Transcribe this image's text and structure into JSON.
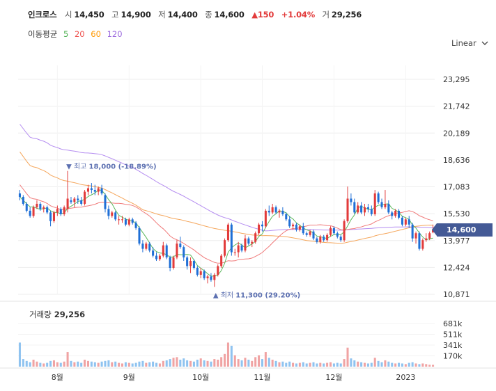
{
  "header": {
    "name": "인크로스",
    "open_label": "시",
    "open": "14,450",
    "high_label": "고",
    "high": "14,900",
    "low_label": "저",
    "low": "14,400",
    "close_label": "종",
    "close": "14,600",
    "change": "▲150",
    "change_pct": "+1.04%",
    "volume_label": "거",
    "volume": "29,256"
  },
  "ma_legend": {
    "label": "이동평균",
    "items": [
      {
        "period": "5",
        "color": "#4caf50"
      },
      {
        "period": "20",
        "color": "#ef5350"
      },
      {
        "period": "60",
        "color": "#ff9800"
      },
      {
        "period": "120",
        "color": "#9c6ade"
      }
    ]
  },
  "scale_button": "Linear",
  "volume_panel": {
    "label": "거래량",
    "value": "29,256"
  },
  "last_price_tag": "14,600",
  "colors": {
    "up": "#e23b3b",
    "down": "#1f6fd6",
    "vol_up": "#f0a3a3",
    "vol_down": "#8fc3f0",
    "accent": "#445a96"
  },
  "chart_data": {
    "type": "candlestick",
    "price_axis": {
      "ticks": [
        "23,295",
        "21,742",
        "20,189",
        "18,636",
        "17,083",
        "15,530",
        "13,977",
        "12,424",
        "10,871"
      ],
      "ylim": [
        10871,
        23295
      ]
    },
    "volume_axis": {
      "ticks": [
        "681k",
        "511k",
        "341k",
        "170k"
      ]
    },
    "x_ticks": [
      {
        "label": "8월",
        "index": 11
      },
      {
        "label": "9월",
        "index": 32
      },
      {
        "label": "10월",
        "index": 53
      },
      {
        "label": "11월",
        "index": 71
      },
      {
        "label": "12월",
        "index": 92
      },
      {
        "label": "2023",
        "index": 113
      }
    ],
    "annotations": [
      {
        "label": "최고",
        "value": "18,000",
        "pct": "(-18.89%)",
        "index": 14,
        "type": "high"
      },
      {
        "label": "최저",
        "value": "11,300",
        "pct": "(29.20%)",
        "index": 57,
        "type": "low"
      }
    ],
    "ohlcv": [
      [
        16700,
        16900,
        16300,
        16500,
        380
      ],
      [
        16500,
        16600,
        16000,
        16100,
        120
      ],
      [
        16100,
        16200,
        15600,
        15700,
        90
      ],
      [
        15700,
        15900,
        15300,
        15400,
        70
      ],
      [
        15400,
        16000,
        15300,
        15900,
        110
      ],
      [
        15900,
        16300,
        15800,
        16100,
        80
      ],
      [
        16100,
        16200,
        15700,
        15800,
        60
      ],
      [
        15800,
        16000,
        15600,
        15900,
        50
      ],
      [
        15900,
        16000,
        15500,
        15600,
        60
      ],
      [
        15600,
        15700,
        14800,
        15100,
        90
      ],
      [
        15100,
        15700,
        15000,
        15600,
        100
      ],
      [
        15600,
        16000,
        15400,
        15800,
        70
      ],
      [
        15800,
        15900,
        15400,
        15500,
        60
      ],
      [
        15500,
        16000,
        15400,
        15900,
        80
      ],
      [
        15800,
        18000,
        15600,
        16400,
        230
      ],
      [
        16300,
        16500,
        16100,
        16200,
        90
      ],
      [
        16200,
        16500,
        15900,
        16400,
        70
      ],
      [
        16400,
        16600,
        16100,
        16300,
        80
      ],
      [
        16300,
        16500,
        16000,
        16100,
        60
      ],
      [
        16100,
        16900,
        16000,
        16800,
        110
      ],
      [
        16800,
        17200,
        16600,
        17000,
        90
      ],
      [
        17000,
        17300,
        16700,
        16900,
        80
      ],
      [
        16900,
        17200,
        16600,
        16800,
        70
      ],
      [
        16800,
        17100,
        16600,
        17000,
        60
      ],
      [
        17000,
        17200,
        16600,
        16700,
        80
      ],
      [
        16600,
        16700,
        15600,
        15800,
        90
      ],
      [
        15800,
        16000,
        15200,
        15400,
        100
      ],
      [
        15400,
        15700,
        15300,
        15600,
        70
      ],
      [
        15600,
        15700,
        15100,
        15200,
        80
      ],
      [
        15200,
        15400,
        14900,
        15200,
        60
      ],
      [
        15200,
        15400,
        15000,
        15200,
        50
      ],
      [
        15200,
        15300,
        14800,
        14900,
        70
      ],
      [
        14900,
        15300,
        14800,
        15200,
        60
      ],
      [
        15200,
        15300,
        14900,
        15000,
        50
      ],
      [
        15000,
        15100,
        14600,
        14700,
        60
      ],
      [
        14700,
        14800,
        13700,
        13800,
        80
      ],
      [
        13800,
        14000,
        13300,
        13500,
        90
      ],
      [
        13500,
        13900,
        13400,
        13800,
        60
      ],
      [
        13800,
        13900,
        13300,
        13400,
        70
      ],
      [
        13400,
        13600,
        13000,
        13100,
        80
      ],
      [
        13100,
        13300,
        12800,
        12900,
        60
      ],
      [
        12900,
        13200,
        12800,
        13100,
        50
      ],
      [
        13100,
        13900,
        13000,
        13700,
        90
      ],
      [
        13700,
        13800,
        12900,
        13000,
        100
      ],
      [
        13000,
        13100,
        12200,
        12400,
        120
      ],
      [
        12400,
        13100,
        12300,
        13000,
        140
      ],
      [
        13000,
        14000,
        12900,
        13800,
        150
      ],
      [
        13800,
        14200,
        13500,
        13600,
        110
      ],
      [
        13600,
        13700,
        12800,
        13000,
        130
      ],
      [
        13000,
        13100,
        12300,
        12500,
        100
      ],
      [
        12500,
        13000,
        12100,
        12800,
        90
      ],
      [
        12800,
        12900,
        12300,
        12400,
        80
      ],
      [
        12400,
        12500,
        11900,
        12000,
        110
      ],
      [
        12000,
        12400,
        11800,
        12200,
        130
      ],
      [
        12200,
        12300,
        11700,
        11800,
        100
      ],
      [
        11800,
        12000,
        11500,
        11900,
        90
      ],
      [
        11900,
        12100,
        11600,
        11700,
        80
      ],
      [
        11700,
        12100,
        11300,
        12000,
        120
      ],
      [
        12000,
        12600,
        11900,
        12500,
        110
      ],
      [
        12500,
        13200,
        12400,
        13100,
        150
      ],
      [
        13100,
        14100,
        13000,
        14000,
        200
      ],
      [
        14000,
        15000,
        13900,
        14900,
        380
      ],
      [
        14900,
        15000,
        13100,
        13300,
        330
      ],
      [
        13300,
        13500,
        13100,
        13300,
        180
      ],
      [
        13300,
        13900,
        13000,
        13700,
        120
      ],
      [
        13700,
        13800,
        13300,
        13400,
        100
      ],
      [
        13400,
        14300,
        13300,
        14100,
        140
      ],
      [
        14100,
        14200,
        13700,
        13800,
        110
      ],
      [
        13800,
        14000,
        13600,
        13900,
        90
      ],
      [
        13900,
        14500,
        13800,
        14400,
        150
      ],
      [
        14400,
        15000,
        14300,
        14900,
        180
      ],
      [
        14900,
        15100,
        14500,
        14800,
        120
      ],
      [
        14800,
        15800,
        14700,
        15700,
        230
      ],
      [
        15700,
        16000,
        15400,
        15600,
        140
      ],
      [
        15600,
        16100,
        15500,
        15900,
        110
      ],
      [
        15900,
        16000,
        15500,
        15600,
        90
      ],
      [
        15600,
        15800,
        15300,
        15700,
        70
      ],
      [
        15700,
        15900,
        15400,
        15500,
        80
      ],
      [
        15500,
        15600,
        15100,
        15200,
        60
      ],
      [
        15200,
        15400,
        14700,
        14800,
        80
      ],
      [
        14800,
        15000,
        14600,
        14900,
        60
      ],
      [
        14900,
        15000,
        14500,
        14600,
        50
      ],
      [
        14600,
        14900,
        14500,
        14800,
        60
      ],
      [
        14800,
        15000,
        14300,
        14400,
        70
      ],
      [
        14400,
        14500,
        14200,
        14300,
        50
      ],
      [
        14300,
        14600,
        14200,
        14500,
        60
      ],
      [
        14500,
        14600,
        14000,
        14100,
        70
      ],
      [
        14100,
        14200,
        13800,
        13900,
        50
      ],
      [
        13900,
        14300,
        13800,
        14200,
        60
      ],
      [
        14200,
        14300,
        13900,
        14000,
        50
      ],
      [
        14000,
        14400,
        13900,
        14300,
        60
      ],
      [
        14300,
        14800,
        14200,
        14700,
        70
      ],
      [
        14700,
        14800,
        14300,
        14400,
        50
      ],
      [
        14400,
        14500,
        14100,
        14200,
        60
      ],
      [
        14200,
        14300,
        13900,
        14000,
        50
      ],
      [
        14000,
        15200,
        13900,
        15100,
        120
      ],
      [
        15100,
        17100,
        15000,
        16400,
        300
      ],
      [
        16400,
        16700,
        16000,
        16200,
        130
      ],
      [
        16200,
        16400,
        15500,
        15600,
        100
      ],
      [
        15600,
        16200,
        15500,
        16000,
        80
      ],
      [
        16000,
        16200,
        15500,
        15600,
        70
      ],
      [
        15600,
        16100,
        15400,
        15900,
        60
      ],
      [
        15900,
        16100,
        15600,
        15800,
        50
      ],
      [
        15800,
        16000,
        15400,
        15500,
        60
      ],
      [
        15500,
        16900,
        15400,
        16700,
        140
      ],
      [
        16700,
        16800,
        16100,
        16200,
        90
      ],
      [
        16200,
        16400,
        15800,
        15900,
        70
      ],
      [
        15900,
        16900,
        15800,
        16100,
        100
      ],
      [
        16100,
        16300,
        15500,
        15600,
        80
      ],
      [
        15600,
        15700,
        15200,
        15400,
        60
      ],
      [
        15400,
        15800,
        15300,
        15700,
        50
      ],
      [
        15700,
        15800,
        15200,
        15300,
        60
      ],
      [
        15300,
        15400,
        14800,
        14900,
        50
      ],
      [
        14900,
        15300,
        14800,
        15200,
        40
      ],
      [
        15200,
        15400,
        14700,
        14900,
        60
      ],
      [
        14900,
        15000,
        13900,
        14100,
        70
      ],
      [
        14100,
        14500,
        13800,
        14400,
        50
      ],
      [
        14400,
        14500,
        13400,
        13500,
        40
      ],
      [
        13500,
        14100,
        13400,
        14000,
        50
      ],
      [
        14000,
        14400,
        13900,
        14100,
        40
      ],
      [
        14100,
        14500,
        14000,
        14400,
        30
      ],
      [
        14450,
        14900,
        14400,
        14600,
        29
      ]
    ]
  }
}
